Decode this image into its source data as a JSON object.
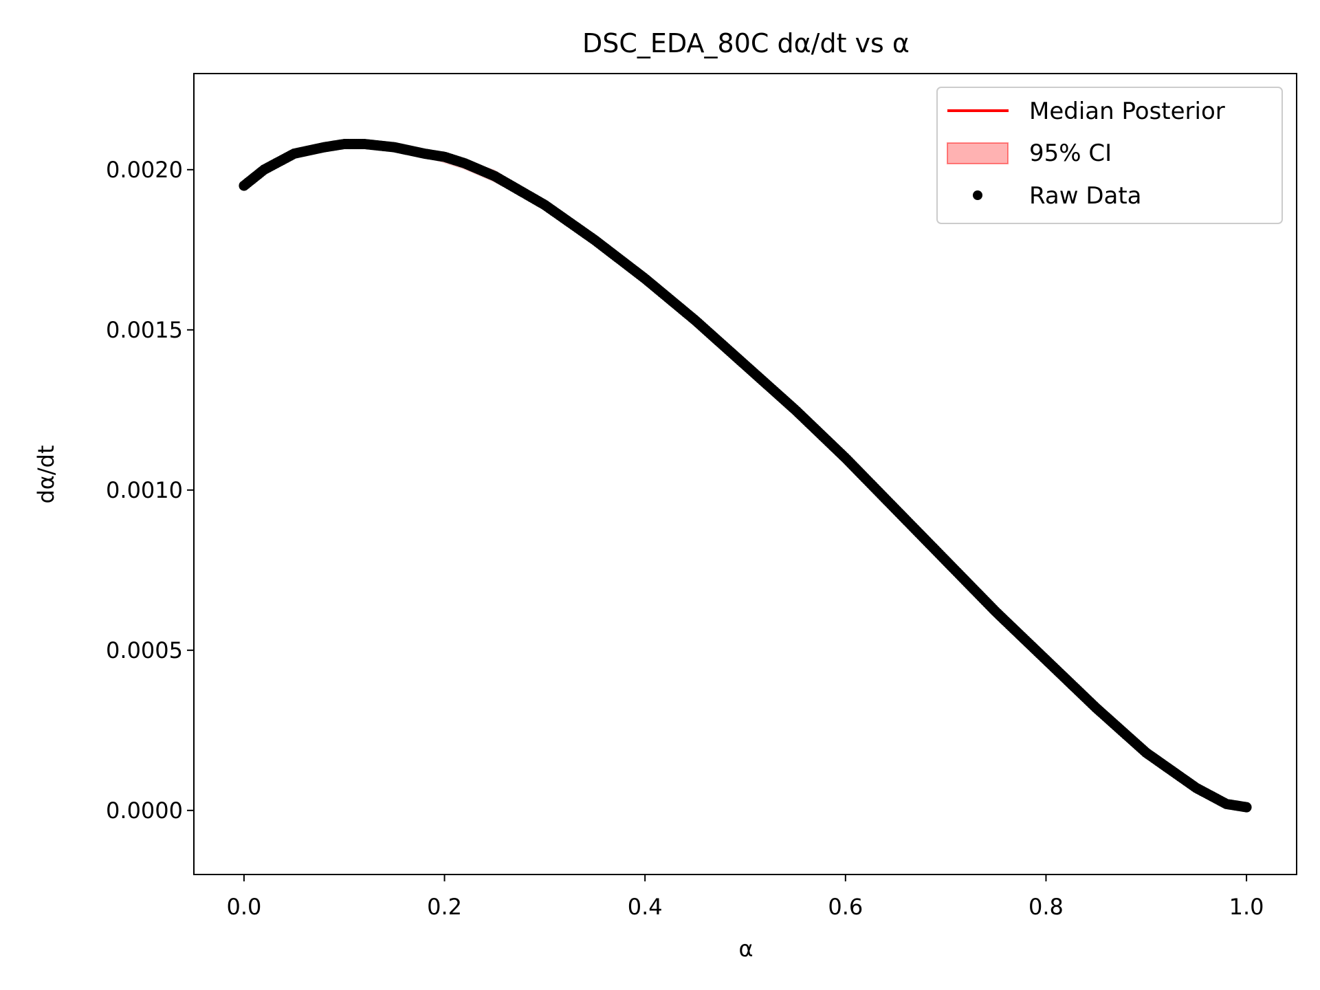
{
  "chart_data": {
    "type": "scatter",
    "title": "DSC_EDA_80C dα/dt vs α",
    "xlabel": "α",
    "ylabel": "dα/dt",
    "xlim": [
      -0.05,
      1.05
    ],
    "ylim": [
      -0.0002,
      0.0023
    ],
    "xticks": [
      0.0,
      0.2,
      0.4,
      0.6,
      0.8,
      1.0
    ],
    "xtick_labels": [
      "0.0",
      "0.2",
      "0.4",
      "0.6",
      "0.8",
      "1.0"
    ],
    "yticks": [
      0.0,
      0.0005,
      0.001,
      0.0015,
      0.002
    ],
    "ytick_labels": [
      "0.0000",
      "0.0005",
      "0.0010",
      "0.0015",
      "0.0020"
    ],
    "grid": false,
    "legend_position": "top-right",
    "series": [
      {
        "name": "Median Posterior",
        "kind": "line",
        "color": "#ff0000",
        "x": [
          0.0,
          0.02,
          0.05,
          0.08,
          0.1,
          0.12,
          0.15,
          0.18,
          0.2,
          0.22,
          0.25,
          0.3,
          0.35,
          0.4,
          0.45,
          0.5,
          0.55,
          0.6,
          0.65,
          0.7,
          0.75,
          0.8,
          0.85,
          0.9,
          0.95,
          0.98,
          1.0
        ],
        "y": [
          0.00195,
          0.002,
          0.00205,
          0.00207,
          0.00208,
          0.00208,
          0.00207,
          0.00205,
          0.00204,
          0.00202,
          0.00198,
          0.00189,
          0.00178,
          0.00166,
          0.00153,
          0.00139,
          0.00125,
          0.0011,
          0.00094,
          0.00078,
          0.00062,
          0.00047,
          0.00032,
          0.00018,
          7e-05,
          2e-05,
          1e-05
        ]
      },
      {
        "name": "95% CI",
        "kind": "band",
        "color": "#ff0000",
        "x": [
          0.0,
          0.02,
          0.05,
          0.08,
          0.1,
          0.12,
          0.15,
          0.18,
          0.2,
          0.22,
          0.25,
          0.3,
          0.35,
          0.4,
          0.45,
          0.5,
          0.55,
          0.6,
          0.65,
          0.7,
          0.75,
          0.8,
          0.85,
          0.9,
          0.95,
          0.98,
          1.0
        ],
        "lower": [
          0.00194,
          0.00199,
          0.00204,
          0.00206,
          0.00207,
          0.00207,
          0.00206,
          0.00204,
          0.00202,
          0.002,
          0.00196,
          0.00188,
          0.00177,
          0.00165,
          0.00152,
          0.00138,
          0.00124,
          0.00109,
          0.00093,
          0.00077,
          0.00061,
          0.00046,
          0.00031,
          0.00017,
          6e-05,
          1e-05,
          0.0
        ],
        "upper": [
          0.00196,
          0.00201,
          0.00206,
          0.00208,
          0.00209,
          0.00209,
          0.00208,
          0.00206,
          0.00205,
          0.00203,
          0.002,
          0.0019,
          0.00179,
          0.00167,
          0.00154,
          0.0014,
          0.00126,
          0.00111,
          0.00095,
          0.00079,
          0.00063,
          0.00048,
          0.00033,
          0.00019,
          8e-05,
          3e-05,
          2e-05
        ]
      },
      {
        "name": "Raw Data",
        "kind": "scatter",
        "color": "#000000",
        "x": [
          0.0,
          0.02,
          0.05,
          0.08,
          0.1,
          0.12,
          0.15,
          0.18,
          0.2,
          0.22,
          0.25,
          0.3,
          0.35,
          0.4,
          0.45,
          0.5,
          0.55,
          0.6,
          0.65,
          0.7,
          0.75,
          0.8,
          0.85,
          0.9,
          0.95,
          0.98,
          1.0
        ],
        "y": [
          0.00195,
          0.002,
          0.00205,
          0.00207,
          0.00208,
          0.00208,
          0.00207,
          0.00205,
          0.00204,
          0.00202,
          0.00198,
          0.00189,
          0.00178,
          0.00166,
          0.00153,
          0.00139,
          0.00125,
          0.0011,
          0.00094,
          0.00078,
          0.00062,
          0.00047,
          0.00032,
          0.00018,
          7e-05,
          2e-05,
          1e-05
        ]
      }
    ]
  }
}
